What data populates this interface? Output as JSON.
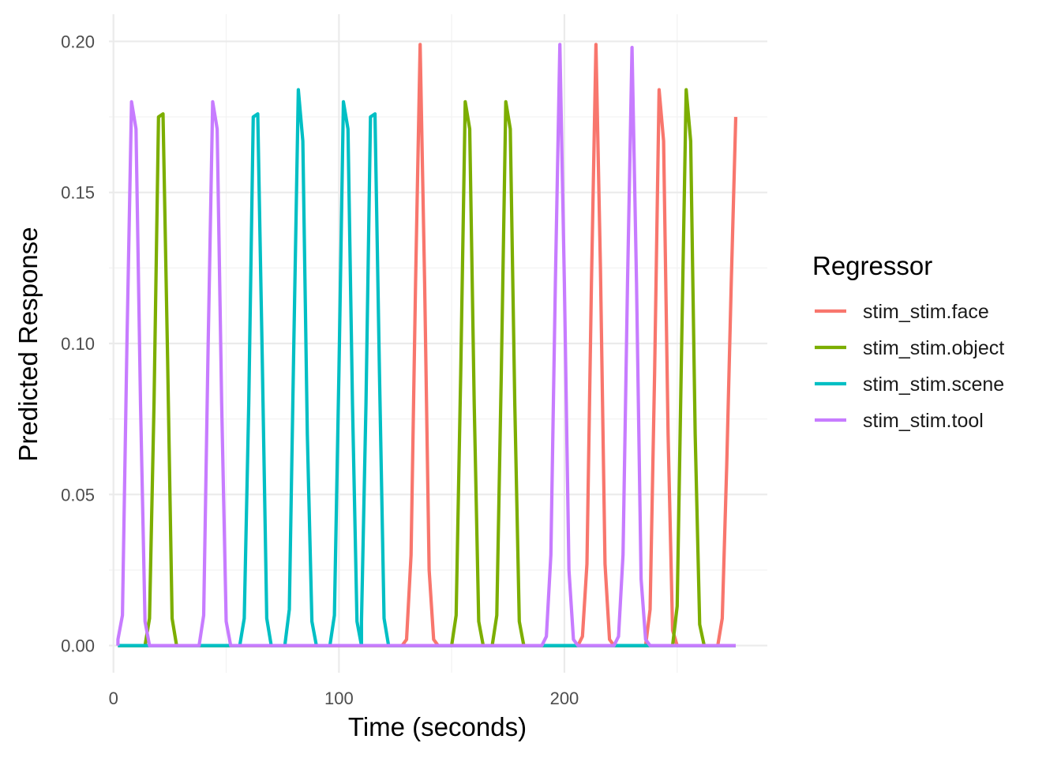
{
  "chart_data": {
    "type": "line",
    "title": "",
    "xlabel": "Time (seconds)",
    "ylabel": "Predicted Response",
    "xlim": [
      -2,
      290
    ],
    "ylim": [
      -0.009,
      0.209
    ],
    "x_ticks": [
      {
        "value": 0,
        "label": "0"
      },
      {
        "value": 100,
        "label": "100"
      },
      {
        "value": 200,
        "label": "200"
      }
    ],
    "y_ticks": [
      {
        "value": 0.0,
        "label": "0.00"
      },
      {
        "value": 0.05,
        "label": "0.05"
      },
      {
        "value": 0.1,
        "label": "0.10"
      },
      {
        "value": 0.15,
        "label": "0.15"
      },
      {
        "value": 0.2,
        "label": "0.20"
      }
    ],
    "grid": true,
    "legend": {
      "title": "Regressor",
      "placement": "right",
      "entries": [
        "stim_stim.face",
        "stim_stim.object",
        "stim_stim.scene",
        "stim_stim.tool"
      ]
    },
    "series": [
      {
        "name": "stim_stim.face",
        "color": "#F8766D",
        "points": [
          [
            2,
            0
          ],
          [
            128,
            0
          ],
          [
            130,
            0.002
          ],
          [
            132,
            0.03
          ],
          [
            134,
            0.12
          ],
          [
            136,
            0.199
          ],
          [
            138,
            0.12
          ],
          [
            140,
            0.025
          ],
          [
            142,
            0.002
          ],
          [
            144,
            0
          ],
          [
            206,
            0
          ],
          [
            208,
            0.003
          ],
          [
            210,
            0.027
          ],
          [
            212,
            0.12
          ],
          [
            214,
            0.199
          ],
          [
            216,
            0.125
          ],
          [
            218,
            0.027
          ],
          [
            220,
            0.002
          ],
          [
            222,
            0
          ],
          [
            236,
            0
          ],
          [
            238,
            0.012
          ],
          [
            240,
            0.09
          ],
          [
            242,
            0.184
          ],
          [
            244,
            0.167
          ],
          [
            246,
            0.07
          ],
          [
            248,
            0.005
          ],
          [
            250,
            0
          ],
          [
            268,
            0
          ],
          [
            270,
            0.009
          ],
          [
            272,
            0.06
          ],
          [
            274,
            0.12
          ],
          [
            276,
            0.175
          ]
        ]
      },
      {
        "name": "stim_stim.object",
        "color": "#7CAE00",
        "points": [
          [
            2,
            0
          ],
          [
            14,
            0
          ],
          [
            16,
            0.009
          ],
          [
            18,
            0.08
          ],
          [
            20,
            0.175
          ],
          [
            22,
            0.176
          ],
          [
            24,
            0.095
          ],
          [
            26,
            0.009
          ],
          [
            28,
            0
          ],
          [
            150,
            0
          ],
          [
            152,
            0.01
          ],
          [
            154,
            0.09
          ],
          [
            156,
            0.18
          ],
          [
            158,
            0.171
          ],
          [
            160,
            0.08
          ],
          [
            162,
            0.008
          ],
          [
            164,
            0
          ],
          [
            168,
            0
          ],
          [
            170,
            0.01
          ],
          [
            172,
            0.09
          ],
          [
            174,
            0.18
          ],
          [
            176,
            0.171
          ],
          [
            178,
            0.08
          ],
          [
            180,
            0.008
          ],
          [
            182,
            0
          ],
          [
            248,
            0
          ],
          [
            250,
            0.013
          ],
          [
            252,
            0.1
          ],
          [
            254,
            0.184
          ],
          [
            256,
            0.167
          ],
          [
            258,
            0.07
          ],
          [
            260,
            0.007
          ],
          [
            262,
            0
          ],
          [
            276,
            0
          ]
        ]
      },
      {
        "name": "stim_stim.scene",
        "color": "#00BFC4",
        "points": [
          [
            2,
            0
          ],
          [
            56,
            0
          ],
          [
            58,
            0.009
          ],
          [
            60,
            0.08
          ],
          [
            62,
            0.175
          ],
          [
            64,
            0.176
          ],
          [
            66,
            0.095
          ],
          [
            68,
            0.009
          ],
          [
            70,
            0
          ],
          [
            76,
            0
          ],
          [
            78,
            0.012
          ],
          [
            80,
            0.1
          ],
          [
            82,
            0.184
          ],
          [
            84,
            0.167
          ],
          [
            86,
            0.07
          ],
          [
            88,
            0.008
          ],
          [
            90,
            0
          ],
          [
            96,
            0
          ],
          [
            98,
            0.01
          ],
          [
            100,
            0.09
          ],
          [
            102,
            0.18
          ],
          [
            104,
            0.171
          ],
          [
            106,
            0.08
          ],
          [
            108,
            0.008
          ],
          [
            110,
            0
          ],
          [
            110,
            0.008
          ],
          [
            112,
            0.08
          ],
          [
            114,
            0.175
          ],
          [
            116,
            0.176
          ],
          [
            118,
            0.09
          ],
          [
            120,
            0.009
          ],
          [
            122,
            0
          ],
          [
            276,
            0
          ]
        ]
      },
      {
        "name": "stim_stim.tool",
        "color": "#C77CFF",
        "points": [
          [
            2,
            0
          ],
          [
            2,
            0.002
          ],
          [
            4,
            0.01
          ],
          [
            6,
            0.1
          ],
          [
            8,
            0.18
          ],
          [
            10,
            0.171
          ],
          [
            12,
            0.08
          ],
          [
            14,
            0.008
          ],
          [
            16,
            0
          ],
          [
            38,
            0
          ],
          [
            40,
            0.01
          ],
          [
            42,
            0.1
          ],
          [
            44,
            0.18
          ],
          [
            46,
            0.171
          ],
          [
            48,
            0.08
          ],
          [
            50,
            0.008
          ],
          [
            52,
            0
          ],
          [
            190,
            0
          ],
          [
            192,
            0.003
          ],
          [
            194,
            0.03
          ],
          [
            196,
            0.12
          ],
          [
            198,
            0.199
          ],
          [
            200,
            0.12
          ],
          [
            202,
            0.025
          ],
          [
            204,
            0.002
          ],
          [
            206,
            0
          ],
          [
            222,
            0
          ],
          [
            224,
            0.003
          ],
          [
            226,
            0.03
          ],
          [
            228,
            0.12
          ],
          [
            230,
            0.198
          ],
          [
            232,
            0.12
          ],
          [
            234,
            0.022
          ],
          [
            236,
            0.002
          ],
          [
            238,
            0
          ],
          [
            276,
            0
          ]
        ]
      }
    ]
  }
}
